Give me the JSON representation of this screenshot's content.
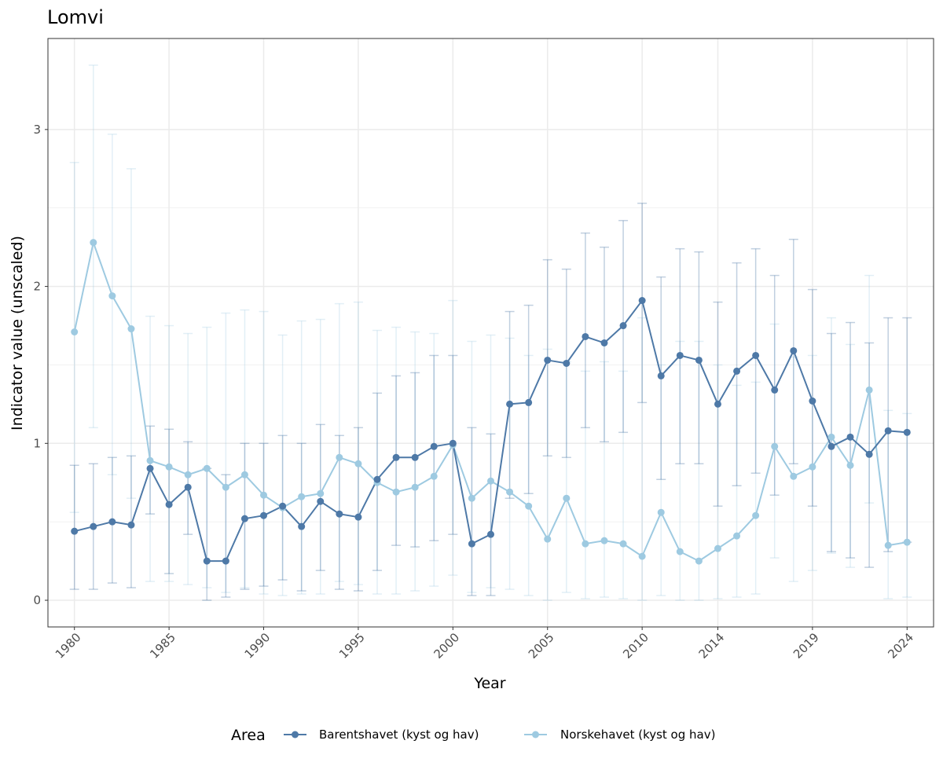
{
  "chart_data": {
    "type": "line",
    "title": "Lomvi",
    "xlabel": "Year",
    "ylabel": "Indicator value (unscaled)",
    "legend_title": "Area",
    "legend_position": "bottom",
    "grid": true,
    "ylim": [
      -0.17,
      3.58
    ],
    "xlim": [
      1978.6,
      2025.4
    ],
    "x_ticks": [
      1980,
      1985,
      1990,
      1995,
      2000,
      2005,
      2010,
      2014,
      2019,
      2024
    ],
    "x_tick_labels": [
      "1980",
      "1985",
      "1990",
      "1995",
      "2000",
      "2005",
      "2010",
      "2014",
      "2019",
      "2024"
    ],
    "y_ticks": [
      0,
      1,
      2,
      3
    ],
    "y_tick_labels": [
      "0",
      "1",
      "2",
      "3"
    ],
    "x": [
      1980,
      1981,
      1982,
      1983,
      1984,
      1985,
      1986,
      1987,
      1988,
      1989,
      1990,
      1991,
      1992,
      1993,
      1994,
      1995,
      1996,
      1997,
      1998,
      1999,
      2000,
      2001,
      2002,
      2003,
      2004,
      2005,
      2006,
      2007,
      2008,
      2009,
      2010,
      2011,
      2012,
      2013,
      2014,
      2015,
      2016,
      2017,
      2018,
      2019,
      2020,
      2021,
      2022,
      2023,
      2024
    ],
    "series": [
      {
        "name": "Barentshavet (kyst og hav)",
        "color": "#4e79a7",
        "values": [
          0.44,
          0.47,
          0.5,
          0.48,
          0.84,
          0.61,
          0.72,
          0.25,
          0.25,
          0.52,
          0.54,
          0.6,
          0.47,
          0.63,
          0.55,
          0.53,
          0.77,
          0.91,
          0.91,
          0.98,
          1.0,
          0.36,
          0.42,
          1.25,
          1.26,
          1.53,
          1.51,
          1.68,
          1.64,
          1.75,
          1.91,
          1.43,
          1.56,
          1.53,
          1.25,
          1.46,
          1.56,
          1.34,
          1.59,
          1.27,
          0.98,
          1.04,
          0.93,
          1.08,
          1.07
        ],
        "lower": [
          0.07,
          0.07,
          0.11,
          0.08,
          0.55,
          0.17,
          0.42,
          0.0,
          0.02,
          0.07,
          0.09,
          0.13,
          0.06,
          0.19,
          0.07,
          0.06,
          0.19,
          0.35,
          0.34,
          0.38,
          0.42,
          0.03,
          0.03,
          0.65,
          0.68,
          0.92,
          0.91,
          1.1,
          1.01,
          1.07,
          1.26,
          0.77,
          0.87,
          0.87,
          0.6,
          0.73,
          0.81,
          0.67,
          0.87,
          0.6,
          0.31,
          0.27,
          0.21,
          0.31,
          0.37
        ],
        "upper": [
          0.86,
          0.87,
          0.91,
          0.92,
          1.11,
          1.09,
          1.01,
          0.84,
          0.8,
          1.0,
          1.0,
          1.05,
          1.0,
          1.12,
          1.05,
          1.1,
          1.32,
          1.43,
          1.45,
          1.56,
          1.56,
          1.1,
          1.06,
          1.84,
          1.88,
          2.17,
          2.11,
          2.34,
          2.25,
          2.42,
          2.53,
          2.06,
          2.24,
          2.22,
          1.9,
          2.15,
          2.24,
          2.07,
          2.3,
          1.98,
          1.7,
          1.77,
          1.64,
          1.8,
          1.8
        ]
      },
      {
        "name": "Norskehavet (kyst og hav)",
        "color": "#9ecae1",
        "values": [
          1.71,
          2.28,
          1.94,
          1.73,
          0.89,
          0.85,
          0.8,
          0.84,
          0.72,
          0.8,
          0.67,
          0.59,
          0.66,
          0.68,
          0.91,
          0.87,
          0.75,
          0.69,
          0.72,
          0.79,
          0.99,
          0.65,
          0.76,
          0.69,
          0.6,
          0.39,
          0.65,
          0.36,
          0.38,
          0.36,
          0.28,
          0.56,
          0.31,
          0.25,
          0.33,
          0.41,
          0.54,
          0.98,
          0.79,
          0.85,
          1.04,
          0.86,
          1.34,
          0.35,
          0.37
        ],
        "lower": [
          0.56,
          1.1,
          0.8,
          0.65,
          0.12,
          0.12,
          0.1,
          0.08,
          0.05,
          0.08,
          0.04,
          0.03,
          0.04,
          0.04,
          0.12,
          0.1,
          0.04,
          0.04,
          0.06,
          0.09,
          0.16,
          0.05,
          0.08,
          0.07,
          0.03,
          0.0,
          0.05,
          0.01,
          0.02,
          0.01,
          0.0,
          0.03,
          0.0,
          0.0,
          0.01,
          0.02,
          0.04,
          0.27,
          0.12,
          0.19,
          0.3,
          0.21,
          0.62,
          0.01,
          0.02
        ],
        "upper": [
          2.79,
          3.41,
          2.97,
          2.75,
          1.81,
          1.75,
          1.7,
          1.74,
          1.83,
          1.85,
          1.84,
          1.69,
          1.78,
          1.79,
          1.89,
          1.9,
          1.72,
          1.74,
          1.71,
          1.7,
          1.91,
          1.65,
          1.69,
          1.67,
          1.56,
          1.6,
          1.52,
          1.46,
          1.52,
          1.46,
          1.8,
          1.5,
          1.65,
          1.65,
          1.5,
          1.37,
          1.39,
          1.76,
          1.55,
          1.56,
          1.8,
          1.63,
          2.07,
          1.21,
          1.19
        ]
      }
    ]
  }
}
